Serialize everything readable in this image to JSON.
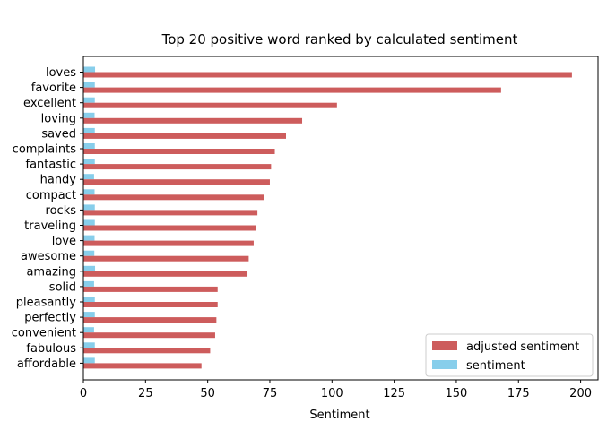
{
  "chart_data": {
    "type": "bar",
    "orientation": "horizontal",
    "title": "Top 20 positive word ranked by calculated sentiment",
    "xlabel": "Sentiment",
    "ylabel": "",
    "xlim": [
      0,
      207
    ],
    "xticks": [
      0,
      25,
      50,
      75,
      100,
      125,
      150,
      175,
      200
    ],
    "grid": false,
    "legend_position": "bottom-right",
    "categories": [
      "loves",
      "favorite",
      "excellent",
      "loving",
      "saved",
      "complaints",
      "fantastic",
      "handy",
      "compact",
      "rocks",
      "traveling",
      "love",
      "awesome",
      "amazing",
      "solid",
      "pleasantly",
      "perfectly",
      "convenient",
      "fabulous",
      "affordable"
    ],
    "series": [
      {
        "name": "adjusted sentiment",
        "color": "#cd5c5c",
        "values": [
          196.5,
          168,
          102,
          88,
          81.5,
          77,
          75.5,
          75,
          72.5,
          70,
          69.5,
          68.5,
          66.5,
          66,
          54,
          54,
          53.5,
          53,
          51,
          47.5
        ]
      },
      {
        "name": "sentiment",
        "color": "#87ceeb",
        "values": [
          4.7,
          4.6,
          4.6,
          4.5,
          4.6,
          4.6,
          4.6,
          4.3,
          4.5,
          4.6,
          4.6,
          4.5,
          4.4,
          4.7,
          4.3,
          4.6,
          4.6,
          4.3,
          4.6,
          4.6
        ]
      }
    ]
  }
}
